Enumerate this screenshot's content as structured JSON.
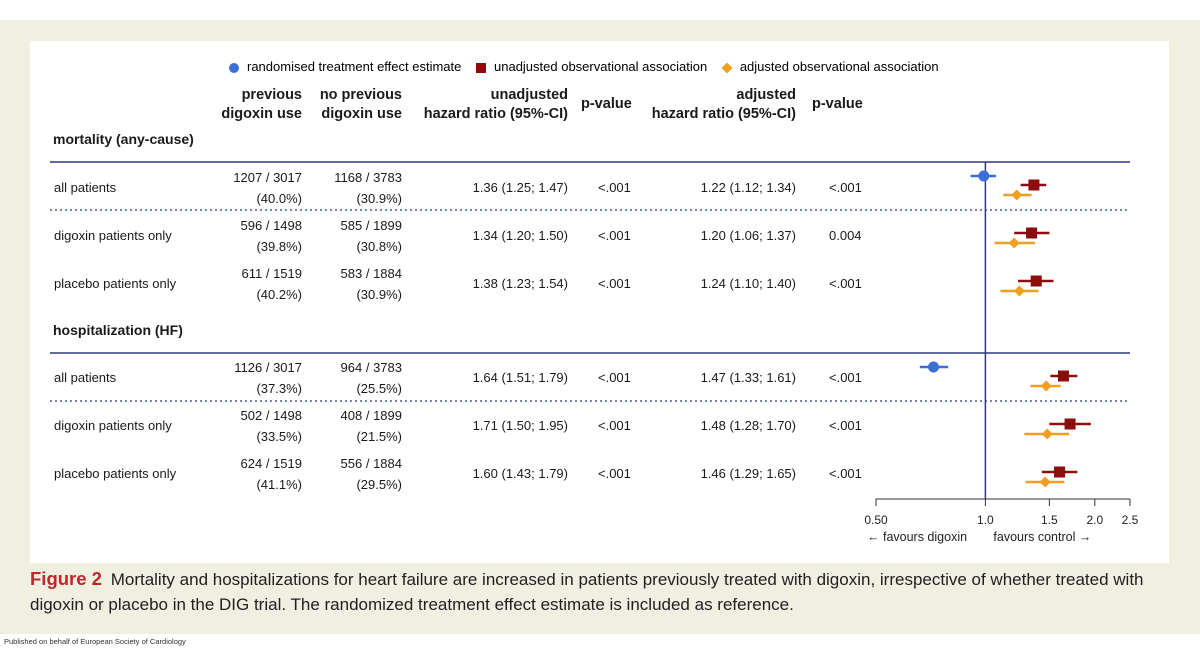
{
  "legend": {
    "randomised": "randomised treatment effect estimate",
    "unadjusted": "unadjusted observational association",
    "adjusted": "adjusted observational association"
  },
  "headers": {
    "prev_line1": "previous",
    "prev_line2": "digoxin use",
    "noprev_line1": "no previous",
    "noprev_line2": "digoxin use",
    "unadj_line1": "unadjusted",
    "unadj_line2": "hazard ratio (95%-CI)",
    "p1": "p-value",
    "adj_line1": "adjusted",
    "adj_line2": "hazard ratio (95%-CI)",
    "p2": "p-value"
  },
  "sections": [
    {
      "title": "mortality (any-cause)",
      "rows": [
        {
          "label": "all patients",
          "prev_n": "1207 / 3017",
          "prev_pct": "(40.0%)",
          "noprev_n": "1168 / 3783",
          "noprev_pct": "(30.9%)",
          "unadj": "1.36 (1.25; 1.47)",
          "p_unadj": "<.001",
          "adj": "1.22 (1.12; 1.34)",
          "p_adj": "<.001"
        },
        {
          "label": "digoxin patients only",
          "prev_n": "596 / 1498",
          "prev_pct": "(39.8%)",
          "noprev_n": "585 / 1899",
          "noprev_pct": "(30.8%)",
          "unadj": "1.34 (1.20; 1.50)",
          "p_unadj": "<.001",
          "adj": "1.20 (1.06; 1.37)",
          "p_adj": "0.004"
        },
        {
          "label": "placebo patients only",
          "prev_n": "611 / 1519",
          "prev_pct": "(40.2%)",
          "noprev_n": "583 / 1884",
          "noprev_pct": "(30.9%)",
          "unadj": "1.38 (1.23; 1.54)",
          "p_unadj": "<.001",
          "adj": "1.24 (1.10; 1.40)",
          "p_adj": "<.001"
        }
      ]
    },
    {
      "title": "hospitalization (HF)",
      "rows": [
        {
          "label": "all patients",
          "prev_n": "1126 / 3017",
          "prev_pct": "(37.3%)",
          "noprev_n": "964 / 3783",
          "noprev_pct": "(25.5%)",
          "unadj": "1.64 (1.51; 1.79)",
          "p_unadj": "<.001",
          "adj": "1.47 (1.33; 1.61)",
          "p_adj": "<.001"
        },
        {
          "label": "digoxin patients only",
          "prev_n": "502 / 1498",
          "prev_pct": "(33.5%)",
          "noprev_n": "408 / 1899",
          "noprev_pct": "(21.5%)",
          "unadj": "1.71 (1.50; 1.95)",
          "p_unadj": "<.001",
          "adj": "1.48 (1.28; 1.70)",
          "p_adj": "<.001"
        },
        {
          "label": "placebo patients only",
          "prev_n": "624 / 1519",
          "prev_pct": "(41.1%)",
          "noprev_n": "556 / 1884",
          "noprev_pct": "(29.5%)",
          "unadj": "1.60 (1.43; 1.79)",
          "p_unadj": "<.001",
          "adj": "1.46 (1.29; 1.65)",
          "p_adj": "<.001"
        }
      ]
    }
  ],
  "caption": {
    "label": "Figure 2",
    "text": "Mortality and hospitalizations for heart failure are increased in patients previously treated with digoxin, irrespective of whether treated with digoxin or placebo in the DIG trial. The randomized treatment effect estimate is included as reference."
  },
  "footer": "Published on behalf of European Society of Cardiology",
  "chart_data": {
    "type": "forest",
    "scale": "log",
    "xlim": [
      0.5,
      2.5
    ],
    "reference_line": 1.0,
    "xticks": [
      "0.50",
      "1.0",
      "1.5",
      "2.0",
      "2.5"
    ],
    "xlabel_left": "← favours digoxin",
    "xlabel_right": "favours control →",
    "colors": {
      "randomised": "#3b6fd6",
      "unadjusted": "#8b0d0d",
      "adjusted": "#f0a020"
    },
    "rows": [
      {
        "section": "mortality (any-cause)",
        "label": "all patients",
        "randomised": {
          "est": 0.99,
          "lo": 0.91,
          "hi": 1.07
        },
        "unadjusted": {
          "est": 1.36,
          "lo": 1.25,
          "hi": 1.47
        },
        "adjusted": {
          "est": 1.22,
          "lo": 1.12,
          "hi": 1.34
        }
      },
      {
        "section": "mortality (any-cause)",
        "label": "digoxin patients only",
        "unadjusted": {
          "est": 1.34,
          "lo": 1.2,
          "hi": 1.5
        },
        "adjusted": {
          "est": 1.2,
          "lo": 1.06,
          "hi": 1.37
        }
      },
      {
        "section": "mortality (any-cause)",
        "label": "placebo patients only",
        "unadjusted": {
          "est": 1.38,
          "lo": 1.23,
          "hi": 1.54
        },
        "adjusted": {
          "est": 1.24,
          "lo": 1.1,
          "hi": 1.4
        }
      },
      {
        "section": "hospitalization (HF)",
        "label": "all patients",
        "randomised": {
          "est": 0.72,
          "lo": 0.66,
          "hi": 0.79
        },
        "unadjusted": {
          "est": 1.64,
          "lo": 1.51,
          "hi": 1.79
        },
        "adjusted": {
          "est": 1.47,
          "lo": 1.33,
          "hi": 1.61
        }
      },
      {
        "section": "hospitalization (HF)",
        "label": "digoxin patients only",
        "unadjusted": {
          "est": 1.71,
          "lo": 1.5,
          "hi": 1.95
        },
        "adjusted": {
          "est": 1.48,
          "lo": 1.28,
          "hi": 1.7
        }
      },
      {
        "section": "hospitalization (HF)",
        "label": "placebo patients only",
        "unadjusted": {
          "est": 1.6,
          "lo": 1.43,
          "hi": 1.79
        },
        "adjusted": {
          "est": 1.46,
          "lo": 1.29,
          "hi": 1.65
        }
      }
    ]
  }
}
